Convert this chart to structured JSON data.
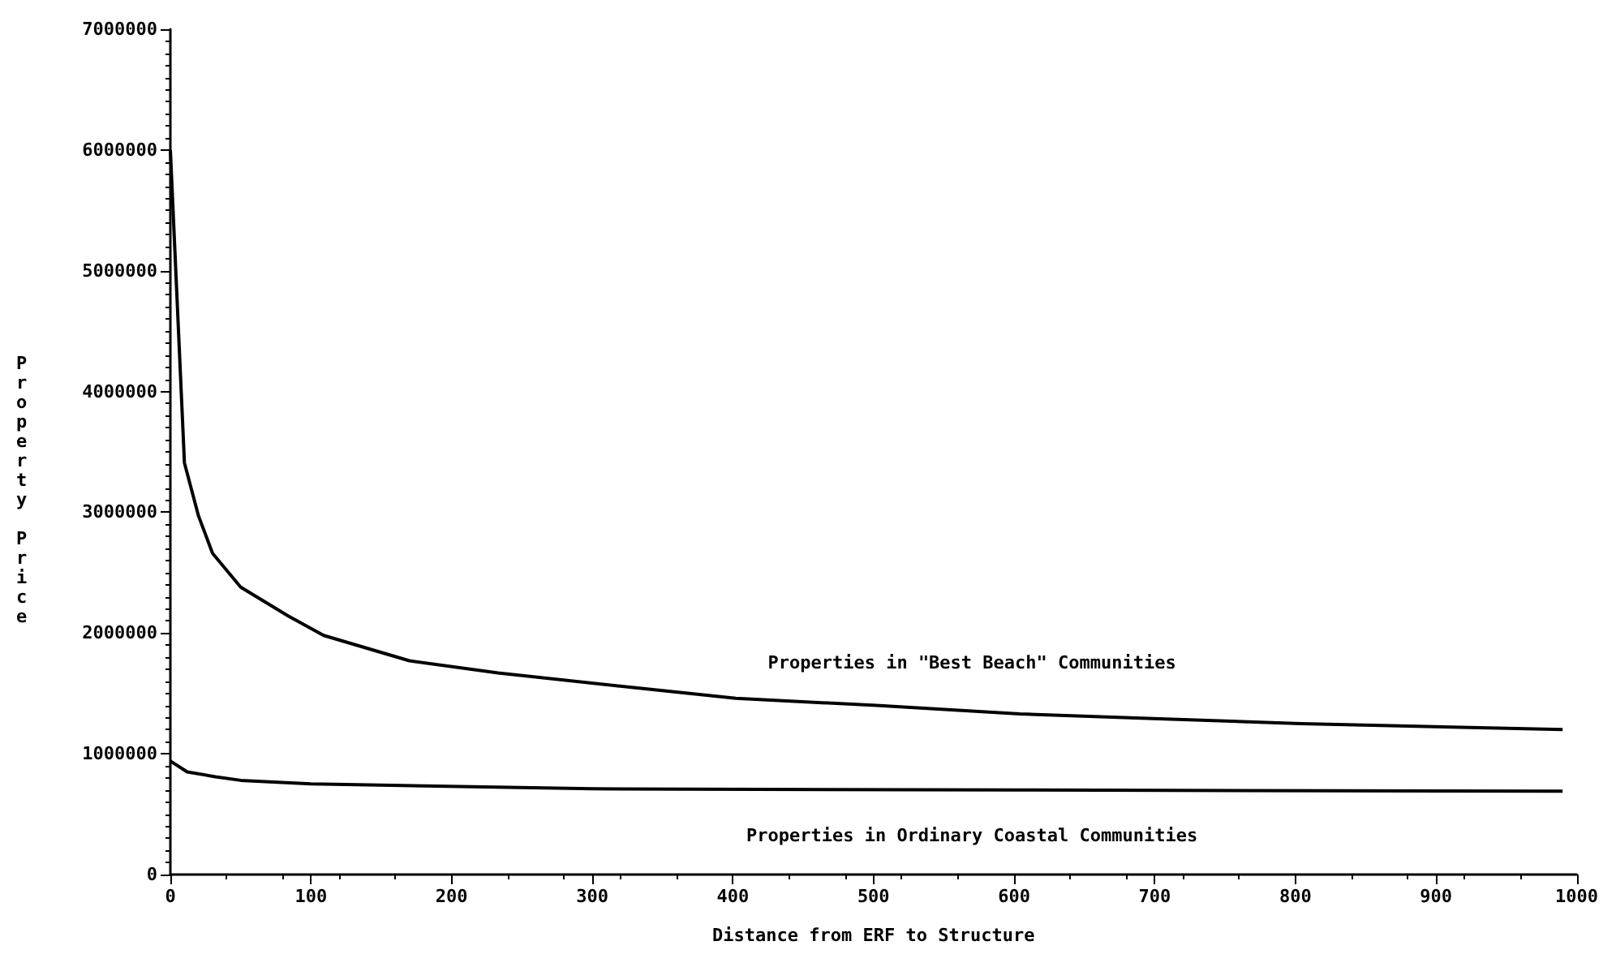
{
  "chart_data": {
    "type": "line",
    "xlabel": "Distance from ERF to Structure",
    "ylabel": "Property Price",
    "xlim": [
      0,
      1000
    ],
    "xticks": [
      0,
      100,
      200,
      300,
      400,
      500,
      600,
      700,
      800,
      900,
      1000
    ],
    "ylim": [
      0,
      7000000
    ],
    "yticks": [
      0,
      1000000,
      2000000,
      3000000,
      4000000,
      5000000,
      6000000,
      7000000
    ],
    "grid": false,
    "legend": false,
    "marker": "none",
    "line_style": "solid",
    "series": [
      {
        "name": "Properties in \"Best Beach\" Communities",
        "color": "#000000",
        "x": [
          0,
          10,
          20,
          30,
          50,
          84,
          109,
          170,
          233,
          328,
          402,
          502,
          604,
          703,
          804,
          990
        ],
        "values": [
          6000000,
          3410000,
          2970000,
          2660000,
          2380000,
          2140000,
          1980000,
          1770000,
          1670000,
          1550000,
          1460000,
          1400000,
          1330000,
          1290000,
          1250000,
          1200000
        ]
      },
      {
        "name": "Properties in Ordinary Coastal Communities",
        "color": "#000000",
        "x": [
          0,
          12,
          32,
          50,
          100,
          300,
          600,
          990
        ],
        "values": [
          940000,
          850000,
          810000,
          780000,
          750000,
          710000,
          700000,
          690000
        ]
      }
    ]
  }
}
